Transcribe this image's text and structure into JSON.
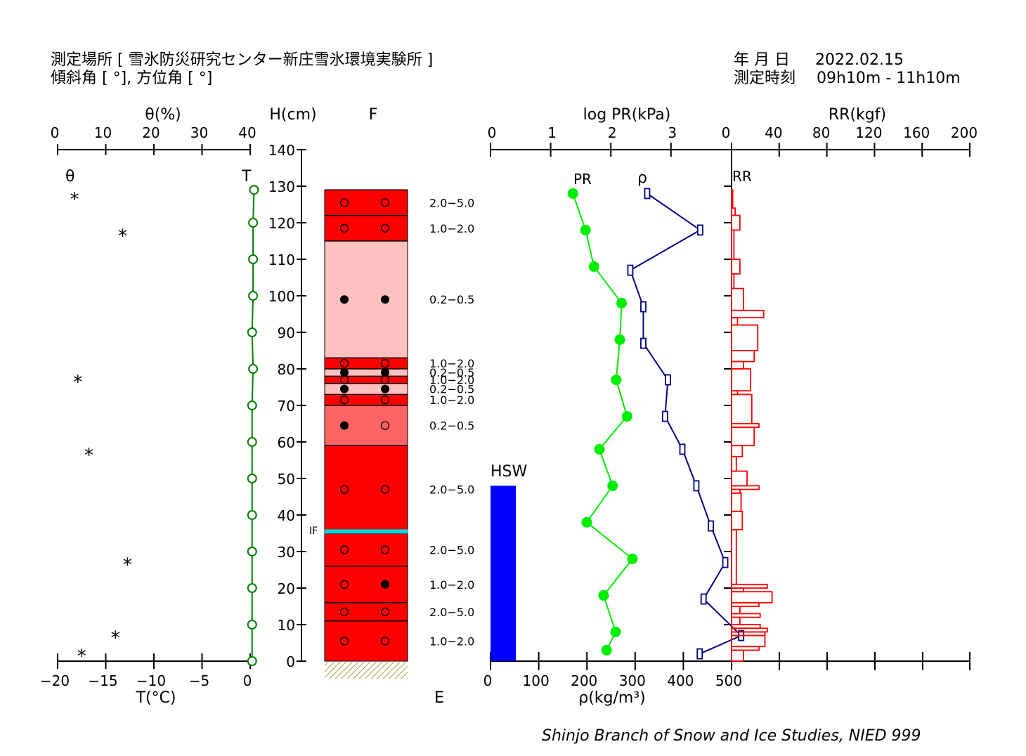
{
  "header": {
    "location_line": "測定場所 [ 雪氷防災研究センター新庄雪氷環境実験所 ]",
    "angle_line": "傾斜角 [ °], 方位角 [ °]",
    "date_label": "年 月 日",
    "date_value": "2022.02.15",
    "time_label": "測定時刻",
    "time_value": "09h10m - 11h10m"
  },
  "footer": "Shinjo Branch of Snow and Ice Studies, NIED 999",
  "chart_data": {
    "type": "snow-pit-profile",
    "height_axis": {
      "label": "H(cm)",
      "range": [
        0,
        140
      ],
      "ticks": [
        0,
        10,
        20,
        30,
        40,
        50,
        60,
        70,
        80,
        90,
        100,
        110,
        120,
        130,
        140
      ]
    },
    "theta": {
      "axis_label": "θ(%)",
      "series_label": "θ",
      "range": [
        0,
        40
      ],
      "ticks": [
        0,
        10,
        20,
        30,
        40
      ],
      "marker": "*",
      "points": [
        {
          "h": 127,
          "v": 3.5
        },
        {
          "h": 117,
          "v": 13.5
        },
        {
          "h": 77,
          "v": 4.2
        },
        {
          "h": 57,
          "v": 6.5
        },
        {
          "h": 27,
          "v": 14.5
        },
        {
          "h": 7,
          "v": 12
        },
        {
          "h": 2,
          "v": 5
        }
      ]
    },
    "temperature": {
      "axis_label": "T(°C)",
      "series_label": "T",
      "range": [
        -20,
        0
      ],
      "ticks": [
        -20,
        -15,
        -10,
        -5,
        0
      ],
      "tick_labels": [
        "−20",
        "−15",
        "−10",
        "−5",
        "0"
      ],
      "color": "#008000",
      "points": [
        {
          "h": 129,
          "v": 0.4
        },
        {
          "h": 120,
          "v": 0.3
        },
        {
          "h": 110,
          "v": 0.3
        },
        {
          "h": 100,
          "v": 0.3
        },
        {
          "h": 90,
          "v": 0.2
        },
        {
          "h": 80,
          "v": 0.3
        },
        {
          "h": 70,
          "v": 0.2
        },
        {
          "h": 60,
          "v": 0.2
        },
        {
          "h": 50,
          "v": 0.2
        },
        {
          "h": 40,
          "v": 0.2
        },
        {
          "h": 30,
          "v": 0.2
        },
        {
          "h": 20,
          "v": 0.2
        },
        {
          "h": 10,
          "v": 0.2
        },
        {
          "h": 0,
          "v": 0.2
        }
      ]
    },
    "stratigraphy": {
      "grain_label": "F",
      "hardness_label": "E",
      "ice_film_label": "IF",
      "ice_film_height": 35.5,
      "ice_film_color": "#00d8e0",
      "ground_color": "#b59a3c",
      "layers": [
        {
          "top": 129,
          "bottom": 122,
          "color": "#ff0000",
          "size": "2.0−5.0",
          "symbols": [
            "o",
            "o"
          ]
        },
        {
          "top": 122,
          "bottom": 115,
          "color": "#ff0000",
          "size": "1.0−2.0",
          "symbols": [
            "o",
            "o"
          ]
        },
        {
          "top": 115,
          "bottom": 83,
          "color": "#ffc0c0",
          "size": "0.2−0.5",
          "symbols": [
            "•",
            "•"
          ]
        },
        {
          "top": 83,
          "bottom": 80,
          "color": "#ff0000",
          "size": "1.0−2.0",
          "symbols": [
            "o",
            "o"
          ]
        },
        {
          "top": 80,
          "bottom": 78,
          "color": "#ffc0c0",
          "size": "0.2−0.5",
          "symbols": [
            "•",
            "•"
          ]
        },
        {
          "top": 78,
          "bottom": 76,
          "color": "#ff0000",
          "size": "1.0−2.0",
          "symbols": [
            "o",
            "o"
          ]
        },
        {
          "top": 76,
          "bottom": 73,
          "color": "#ffc0c0",
          "size": "0.2−0.5",
          "symbols": [
            "•",
            "•"
          ]
        },
        {
          "top": 73,
          "bottom": 70,
          "color": "#ff0000",
          "size": "1.0−2.0",
          "symbols": [
            "o",
            "o"
          ]
        },
        {
          "top": 70,
          "bottom": 59,
          "color": "#ff6464",
          "size": "0.2−0.5",
          "symbols": [
            "•",
            "o"
          ]
        },
        {
          "top": 59,
          "bottom": 35,
          "color": "#ff0000",
          "size": "2.0−5.0",
          "symbols": [
            "o",
            "o"
          ]
        },
        {
          "top": 35,
          "bottom": 26,
          "color": "#ff0000",
          "size": "2.0−5.0",
          "symbols": [
            "o",
            "o"
          ]
        },
        {
          "top": 26,
          "bottom": 16,
          "color": "#ff0000",
          "size": "1.0−2.0",
          "symbols": [
            "o",
            "•"
          ]
        },
        {
          "top": 16,
          "bottom": 11,
          "color": "#ff0000",
          "size": "2.0−5.0",
          "symbols": [
            "o",
            "o"
          ]
        },
        {
          "top": 11,
          "bottom": 0,
          "color": "#ff0000",
          "size": "1.0−2.0",
          "symbols": [
            "o",
            "o"
          ]
        }
      ]
    },
    "hsw": {
      "label": "HSW",
      "value": 48,
      "unit_axis": "ρ(kg/m³)",
      "color": "#0000ff"
    },
    "pr": {
      "axis_label": "log PR(kPa)",
      "series_label": "PR",
      "range": [
        0,
        4
      ],
      "ticks": [
        0,
        1,
        2,
        3
      ],
      "color": "#00ee00",
      "points": [
        {
          "h": 128,
          "v": 1.37
        },
        {
          "h": 118,
          "v": 1.58
        },
        {
          "h": 108,
          "v": 1.72
        },
        {
          "h": 98,
          "v": 2.18
        },
        {
          "h": 88,
          "v": 2.15
        },
        {
          "h": 77,
          "v": 2.09
        },
        {
          "h": 67,
          "v": 2.27
        },
        {
          "h": 58,
          "v": 1.81
        },
        {
          "h": 48,
          "v": 2.03
        },
        {
          "h": 38,
          "v": 1.6
        },
        {
          "h": 28,
          "v": 2.36
        },
        {
          "h": 18,
          "v": 1.88
        },
        {
          "h": 8,
          "v": 2.08
        },
        {
          "h": 3,
          "v": 1.93
        }
      ]
    },
    "density": {
      "axis_label": "ρ(kg/m³)",
      "series_label": "ρ",
      "range": [
        0,
        500
      ],
      "ticks": [
        0,
        100,
        200,
        300,
        400,
        500
      ],
      "color": "#000080",
      "points": [
        {
          "h": 128,
          "v": 325
        },
        {
          "h": 118,
          "v": 435
        },
        {
          "h": 107,
          "v": 290
        },
        {
          "h": 97,
          "v": 317
        },
        {
          "h": 87,
          "v": 317
        },
        {
          "h": 77,
          "v": 368
        },
        {
          "h": 67,
          "v": 362
        },
        {
          "h": 58,
          "v": 398
        },
        {
          "h": 48,
          "v": 427
        },
        {
          "h": 37,
          "v": 457
        },
        {
          "h": 27,
          "v": 487
        },
        {
          "h": 17,
          "v": 442
        },
        {
          "h": 7,
          "v": 520
        },
        {
          "h": 2,
          "v": 434
        }
      ]
    },
    "rr": {
      "axis_label": "RR(kgf)",
      "series_label": "RR",
      "range": [
        0,
        200
      ],
      "ticks": [
        0,
        40,
        80,
        120,
        160,
        200
      ],
      "color": "#ff0000",
      "bars": [
        [
          129,
          124,
          1
        ],
        [
          124,
          122,
          3
        ],
        [
          122,
          118,
          7
        ],
        [
          118,
          110,
          2
        ],
        [
          110,
          106,
          7
        ],
        [
          106,
          102,
          2
        ],
        [
          102,
          96,
          10
        ],
        [
          96,
          94,
          27
        ],
        [
          94,
          92,
          5
        ],
        [
          92,
          85,
          22
        ],
        [
          85,
          82,
          19
        ],
        [
          82,
          80,
          10
        ],
        [
          80,
          74,
          16
        ],
        [
          74,
          73,
          5
        ],
        [
          73,
          65,
          17
        ],
        [
          65,
          64,
          23
        ],
        [
          64,
          59,
          19
        ],
        [
          59,
          56,
          9
        ],
        [
          56,
          52,
          4
        ],
        [
          52,
          48,
          13
        ],
        [
          48,
          47,
          23
        ],
        [
          47,
          46,
          7
        ],
        [
          46,
          41,
          8
        ],
        [
          41,
          36,
          9
        ],
        [
          36,
          21,
          4
        ],
        [
          21,
          20,
          30
        ],
        [
          20,
          19,
          10
        ],
        [
          19,
          16,
          34
        ],
        [
          16,
          15,
          23
        ],
        [
          15,
          13,
          7
        ],
        [
          13,
          12,
          24
        ],
        [
          12,
          10,
          7
        ],
        [
          10,
          9,
          24
        ],
        [
          9,
          8,
          30
        ],
        [
          8,
          7,
          28
        ],
        [
          7,
          4,
          28
        ],
        [
          4,
          3,
          23
        ],
        [
          3,
          0,
          10
        ]
      ]
    }
  }
}
